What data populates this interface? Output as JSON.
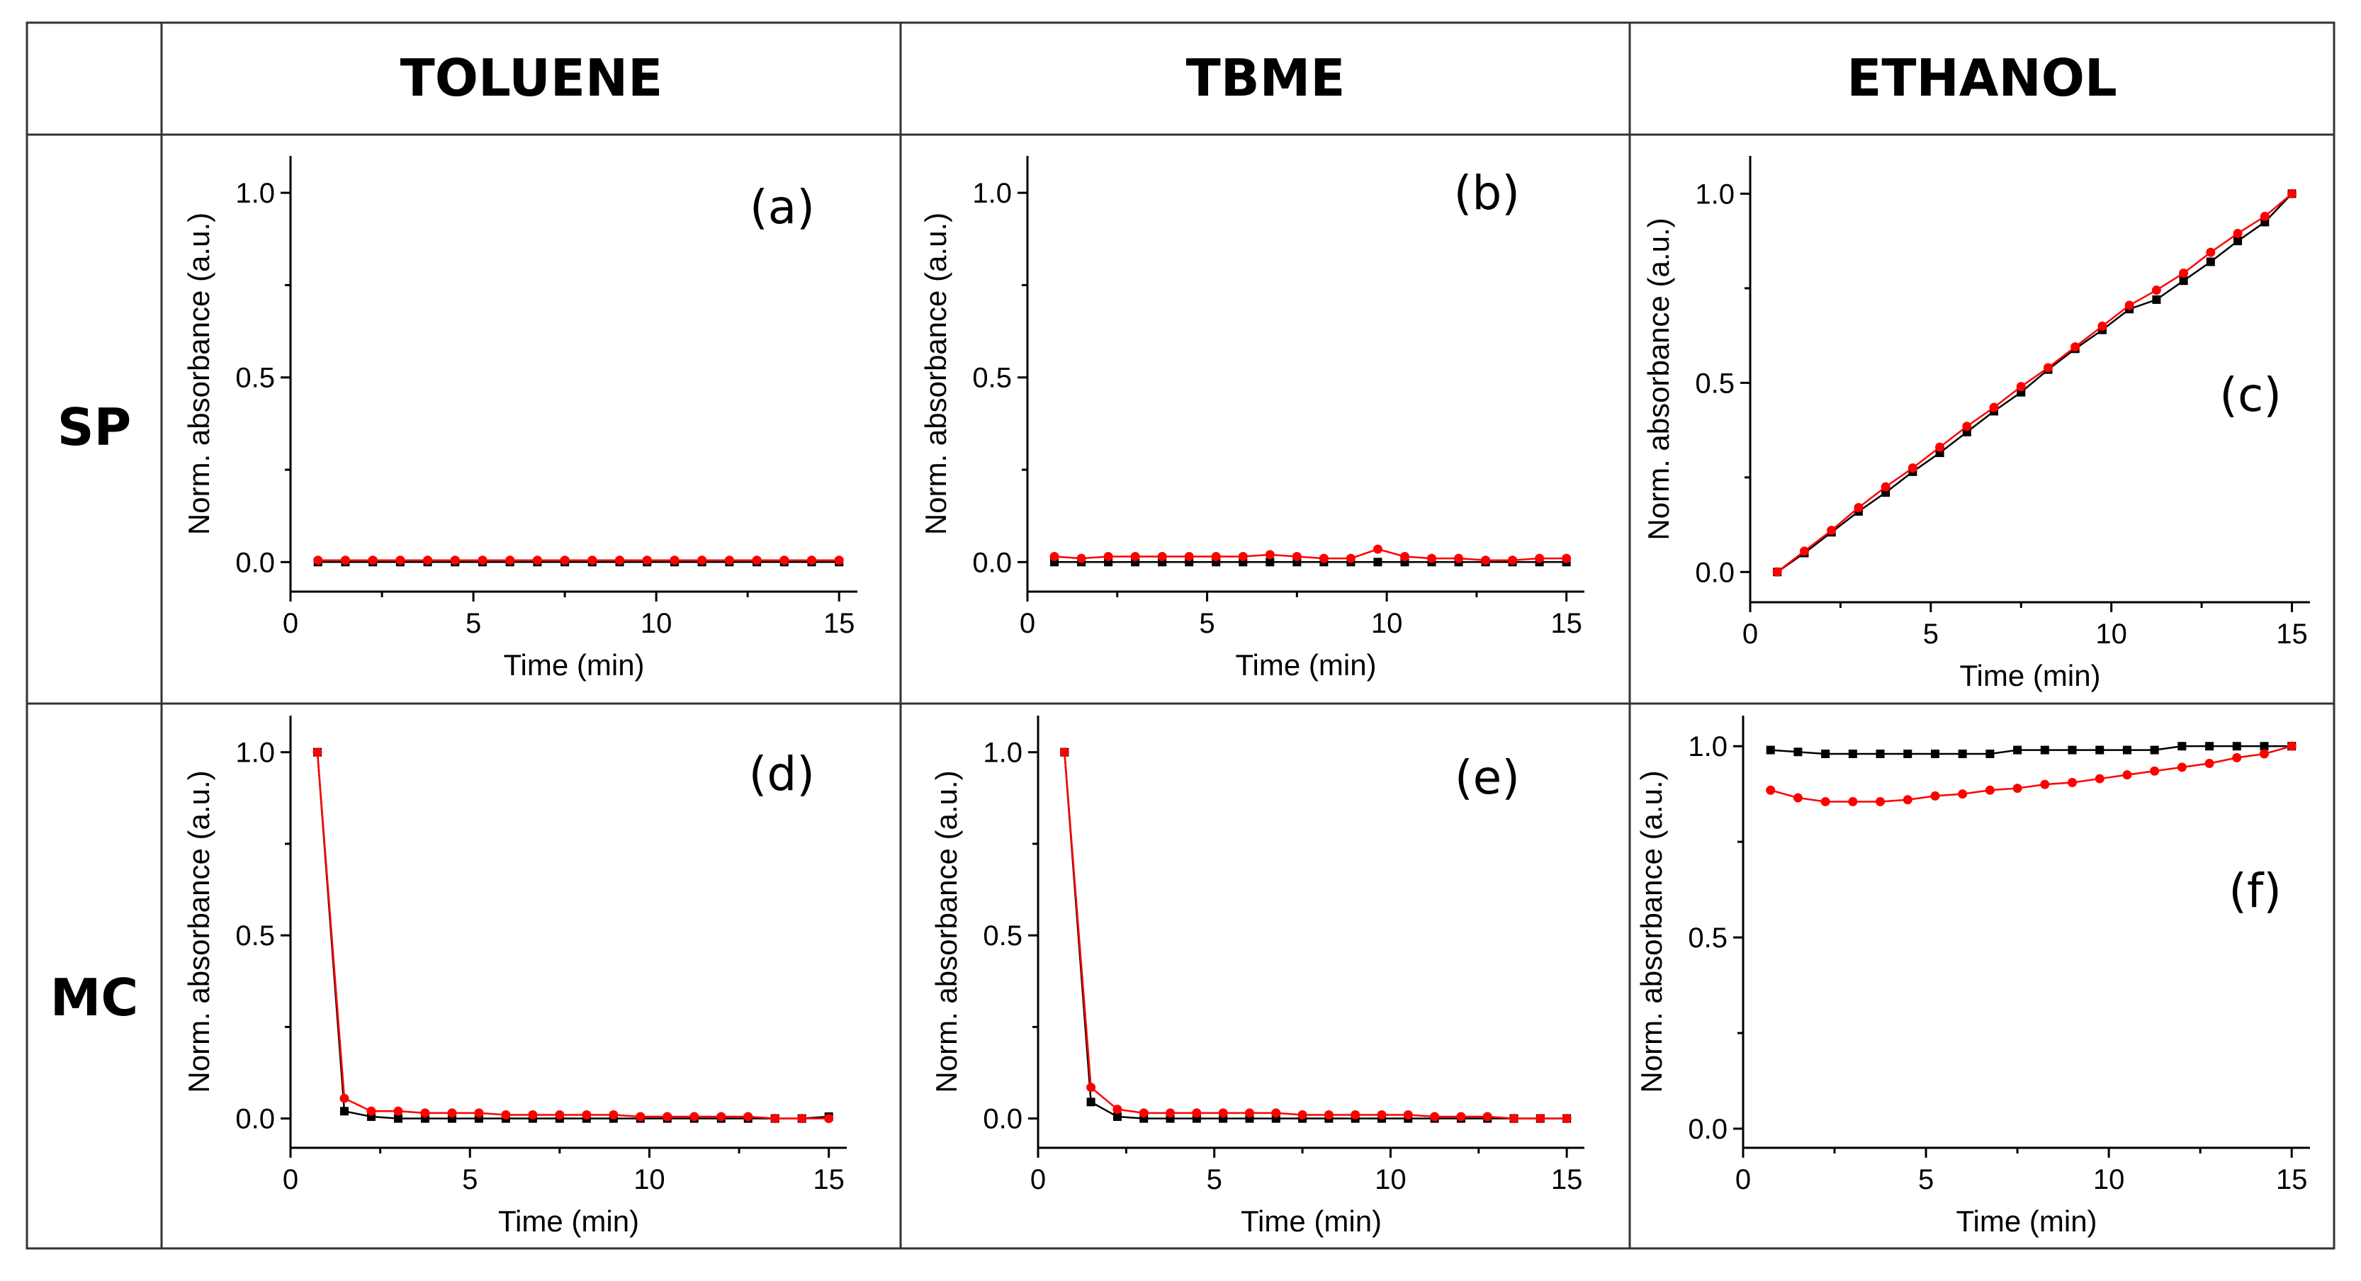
{
  "headers": {
    "columns": [
      "TOLUENE",
      "TBME",
      "ETHANOL"
    ],
    "rows": [
      "SP",
      "MC"
    ]
  },
  "chart_data": [
    {
      "type": "line",
      "panel": "(a)",
      "xlabel": "Time (min)",
      "ylabel": "Norm. absorbance (a.u.)",
      "xlim": [
        0,
        15.5
      ],
      "ylim": [
        -0.08,
        1.1
      ],
      "xticks": [
        "0",
        "5",
        "10",
        "15"
      ],
      "yticks": [
        "0.0",
        "0.5",
        "1.0"
      ],
      "x": [
        0.75,
        1.5,
        2.25,
        3.0,
        3.75,
        4.5,
        5.25,
        6.0,
        6.75,
        7.5,
        8.25,
        9.0,
        9.75,
        10.5,
        11.25,
        12.0,
        12.75,
        13.5,
        14.25,
        15.0
      ],
      "series": [
        {
          "name": "black",
          "color": "#000000",
          "marker": "square",
          "values": [
            0,
            0,
            0,
            0,
            0,
            0,
            0,
            0,
            0,
            0,
            0,
            0,
            0,
            0,
            0,
            0,
            0,
            0,
            0,
            0
          ]
        },
        {
          "name": "red",
          "color": "#ff0000",
          "marker": "circle",
          "values": [
            0.005,
            0.005,
            0.005,
            0.005,
            0.005,
            0.005,
            0.005,
            0.005,
            0.005,
            0.005,
            0.005,
            0.005,
            0.005,
            0.005,
            0.005,
            0.005,
            0.005,
            0.005,
            0.005,
            0.005
          ]
        }
      ]
    },
    {
      "type": "line",
      "panel": "(b)",
      "xlabel": "Time (min)",
      "ylabel": "Norm. absorbance (a.u.)",
      "xlim": [
        0,
        15.5
      ],
      "ylim": [
        -0.08,
        1.1
      ],
      "xticks": [
        "0",
        "5",
        "10",
        "15"
      ],
      "yticks": [
        "0.0",
        "0.5",
        "1.0"
      ],
      "x": [
        0.75,
        1.5,
        2.25,
        3.0,
        3.75,
        4.5,
        5.25,
        6.0,
        6.75,
        7.5,
        8.25,
        9.0,
        9.75,
        10.5,
        11.25,
        12.0,
        12.75,
        13.5,
        14.25,
        15.0
      ],
      "series": [
        {
          "name": "black",
          "color": "#000000",
          "marker": "square",
          "values": [
            0,
            0,
            0,
            0,
            0,
            0,
            0,
            0,
            0,
            0,
            0,
            0,
            0,
            0,
            0,
            0,
            0,
            0,
            0,
            0
          ]
        },
        {
          "name": "red",
          "color": "#ff0000",
          "marker": "circle",
          "values": [
            0.015,
            0.01,
            0.015,
            0.015,
            0.015,
            0.015,
            0.015,
            0.015,
            0.02,
            0.015,
            0.01,
            0.01,
            0.035,
            0.015,
            0.01,
            0.01,
            0.005,
            0.005,
            0.01,
            0.01
          ]
        }
      ]
    },
    {
      "type": "line",
      "panel": "(c)",
      "xlabel": "Time (min)",
      "ylabel": "Norm. absorbance (a.u.)",
      "xlim": [
        0,
        15.5
      ],
      "ylim": [
        -0.08,
        1.1
      ],
      "xticks": [
        "0",
        "5",
        "10",
        "15"
      ],
      "yticks": [
        "0.0",
        "0.5",
        "1.0"
      ],
      "x": [
        0.75,
        1.5,
        2.25,
        3.0,
        3.75,
        4.5,
        5.25,
        6.0,
        6.75,
        7.5,
        8.25,
        9.0,
        9.75,
        10.5,
        11.25,
        12.0,
        12.75,
        13.5,
        14.25,
        15.0
      ],
      "series": [
        {
          "name": "black",
          "color": "#000000",
          "marker": "square",
          "values": [
            0.0,
            0.05,
            0.105,
            0.16,
            0.21,
            0.265,
            0.315,
            0.37,
            0.425,
            0.475,
            0.535,
            0.59,
            0.64,
            0.695,
            0.72,
            0.77,
            0.82,
            0.875,
            0.925,
            1.0
          ]
        },
        {
          "name": "red",
          "color": "#ff0000",
          "marker": "circle",
          "values": [
            0.0,
            0.055,
            0.11,
            0.17,
            0.225,
            0.275,
            0.33,
            0.385,
            0.435,
            0.49,
            0.54,
            0.595,
            0.65,
            0.705,
            0.745,
            0.79,
            0.845,
            0.895,
            0.94,
            1.0
          ]
        }
      ]
    },
    {
      "type": "line",
      "panel": "(d)",
      "xlabel": "Time (min)",
      "ylabel": "Norm. absorbance (a.u.)",
      "xlim": [
        0,
        15.5
      ],
      "ylim": [
        -0.08,
        1.1
      ],
      "xticks": [
        "0",
        "5",
        "10",
        "15"
      ],
      "yticks": [
        "0.0",
        "0.5",
        "1.0"
      ],
      "x": [
        0.75,
        1.5,
        2.25,
        3.0,
        3.75,
        4.5,
        5.25,
        6.0,
        6.75,
        7.5,
        8.25,
        9.0,
        9.75,
        10.5,
        11.25,
        12.0,
        12.75,
        13.5,
        14.25,
        15.0
      ],
      "series": [
        {
          "name": "black",
          "color": "#000000",
          "marker": "square",
          "values": [
            1.0,
            0.02,
            0.005,
            0.0,
            0.0,
            0.0,
            0.0,
            0.0,
            0.0,
            0.0,
            0.0,
            0.0,
            0.0,
            0.0,
            0.0,
            0.0,
            0.0,
            0.0,
            0.0,
            0.005
          ]
        },
        {
          "name": "red",
          "color": "#ff0000",
          "marker": "circle",
          "values": [
            1.0,
            0.055,
            0.02,
            0.02,
            0.015,
            0.015,
            0.015,
            0.01,
            0.01,
            0.01,
            0.01,
            0.01,
            0.005,
            0.005,
            0.005,
            0.005,
            0.005,
            0.0,
            0.0,
            0.0
          ]
        }
      ]
    },
    {
      "type": "line",
      "panel": "(e)",
      "xlabel": "Time (min)",
      "ylabel": "Norm. absorbance (a.u.)",
      "xlim": [
        0,
        15.5
      ],
      "ylim": [
        -0.08,
        1.1
      ],
      "xticks": [
        "0",
        "5",
        "10",
        "15"
      ],
      "yticks": [
        "0.0",
        "0.5",
        "1.0"
      ],
      "x": [
        0.75,
        1.5,
        2.25,
        3.0,
        3.75,
        4.5,
        5.25,
        6.0,
        6.75,
        7.5,
        8.25,
        9.0,
        9.75,
        10.5,
        11.25,
        12.0,
        12.75,
        13.5,
        14.25,
        15.0
      ],
      "series": [
        {
          "name": "black",
          "color": "#000000",
          "marker": "square",
          "values": [
            1.0,
            0.045,
            0.005,
            0.0,
            0.0,
            0.0,
            0.0,
            0.0,
            0.0,
            0.0,
            0.0,
            0.0,
            0.0,
            0.0,
            0.0,
            0.0,
            0.0,
            0.0,
            0.0,
            0.0
          ]
        },
        {
          "name": "red",
          "color": "#ff0000",
          "marker": "circle",
          "values": [
            1.0,
            0.085,
            0.025,
            0.015,
            0.015,
            0.015,
            0.015,
            0.015,
            0.015,
            0.01,
            0.01,
            0.01,
            0.01,
            0.01,
            0.005,
            0.005,
            0.005,
            0.0,
            0.0,
            0.0
          ]
        }
      ]
    },
    {
      "type": "line",
      "panel": "(f)",
      "xlabel": "Time (min)",
      "ylabel": "Norm. absorbance (a.u.)",
      "xlim": [
        0,
        15.5
      ],
      "ylim": [
        -0.05,
        1.08
      ],
      "xticks": [
        "0",
        "5",
        "10",
        "15"
      ],
      "yticks": [
        "0.0",
        "0.5",
        "1.0"
      ],
      "x": [
        0.75,
        1.5,
        2.25,
        3.0,
        3.75,
        4.5,
        5.25,
        6.0,
        6.75,
        7.5,
        8.25,
        9.0,
        9.75,
        10.5,
        11.25,
        12.0,
        12.75,
        13.5,
        14.25,
        15.0
      ],
      "series": [
        {
          "name": "black",
          "color": "#000000",
          "marker": "square",
          "values": [
            0.99,
            0.985,
            0.98,
            0.98,
            0.98,
            0.98,
            0.98,
            0.98,
            0.98,
            0.99,
            0.99,
            0.99,
            0.99,
            0.99,
            0.99,
            1.0,
            1.0,
            1.0,
            1.0,
            1.0
          ]
        },
        {
          "name": "red",
          "color": "#ff0000",
          "marker": "circle",
          "values": [
            0.885,
            0.865,
            0.855,
            0.855,
            0.855,
            0.86,
            0.87,
            0.875,
            0.885,
            0.89,
            0.9,
            0.905,
            0.915,
            0.925,
            0.935,
            0.945,
            0.955,
            0.97,
            0.98,
            1.0
          ]
        }
      ]
    }
  ]
}
